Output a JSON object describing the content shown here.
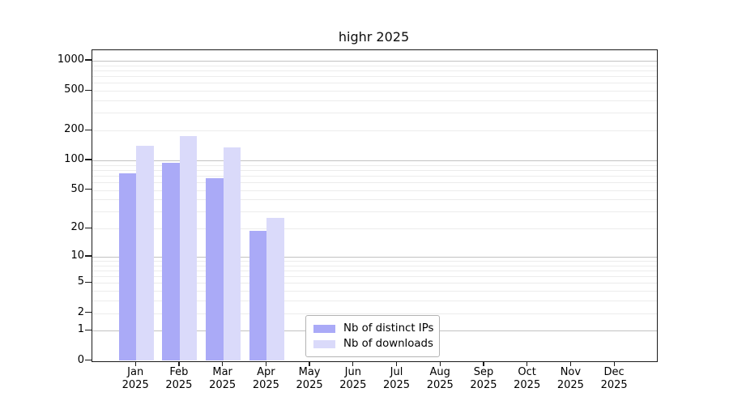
{
  "chart_data": {
    "type": "bar",
    "title": "highr 2025",
    "categories": [
      "Jan",
      "Feb",
      "Mar",
      "Apr",
      "May",
      "Jun",
      "Jul",
      "Aug",
      "Sep",
      "Oct",
      "Nov",
      "Dec"
    ],
    "year_label": "2025",
    "series": [
      {
        "name": "Nb of distinct IPs",
        "color": "#aaaaf7",
        "values": [
          74,
          94,
          66,
          19,
          null,
          null,
          null,
          null,
          null,
          null,
          null,
          null
        ]
      },
      {
        "name": "Nb of downloads",
        "color": "#dadafa",
        "values": [
          141,
          176,
          134,
          26,
          null,
          null,
          null,
          null,
          null,
          null,
          null,
          null
        ]
      }
    ],
    "yscale": "symlog-log1p",
    "y_ticks": [
      0,
      1,
      2,
      5,
      10,
      20,
      50,
      100,
      200,
      500,
      1000
    ],
    "y_minor_gridlines": [
      2,
      3,
      4,
      5,
      6,
      7,
      8,
      9,
      20,
      30,
      40,
      50,
      60,
      70,
      80,
      90,
      200,
      300,
      400,
      500,
      600,
      700,
      800,
      900
    ],
    "y_major_gridlines": [
      1,
      10,
      100,
      1000
    ],
    "ylim": [
      0,
      1270
    ],
    "grid": "on",
    "legend_position": "lower center"
  },
  "colors": {
    "grid_major": "#c2c2c2",
    "grid_minor": "#ececec",
    "axis": "#1a1a1a",
    "text": "#000000"
  }
}
